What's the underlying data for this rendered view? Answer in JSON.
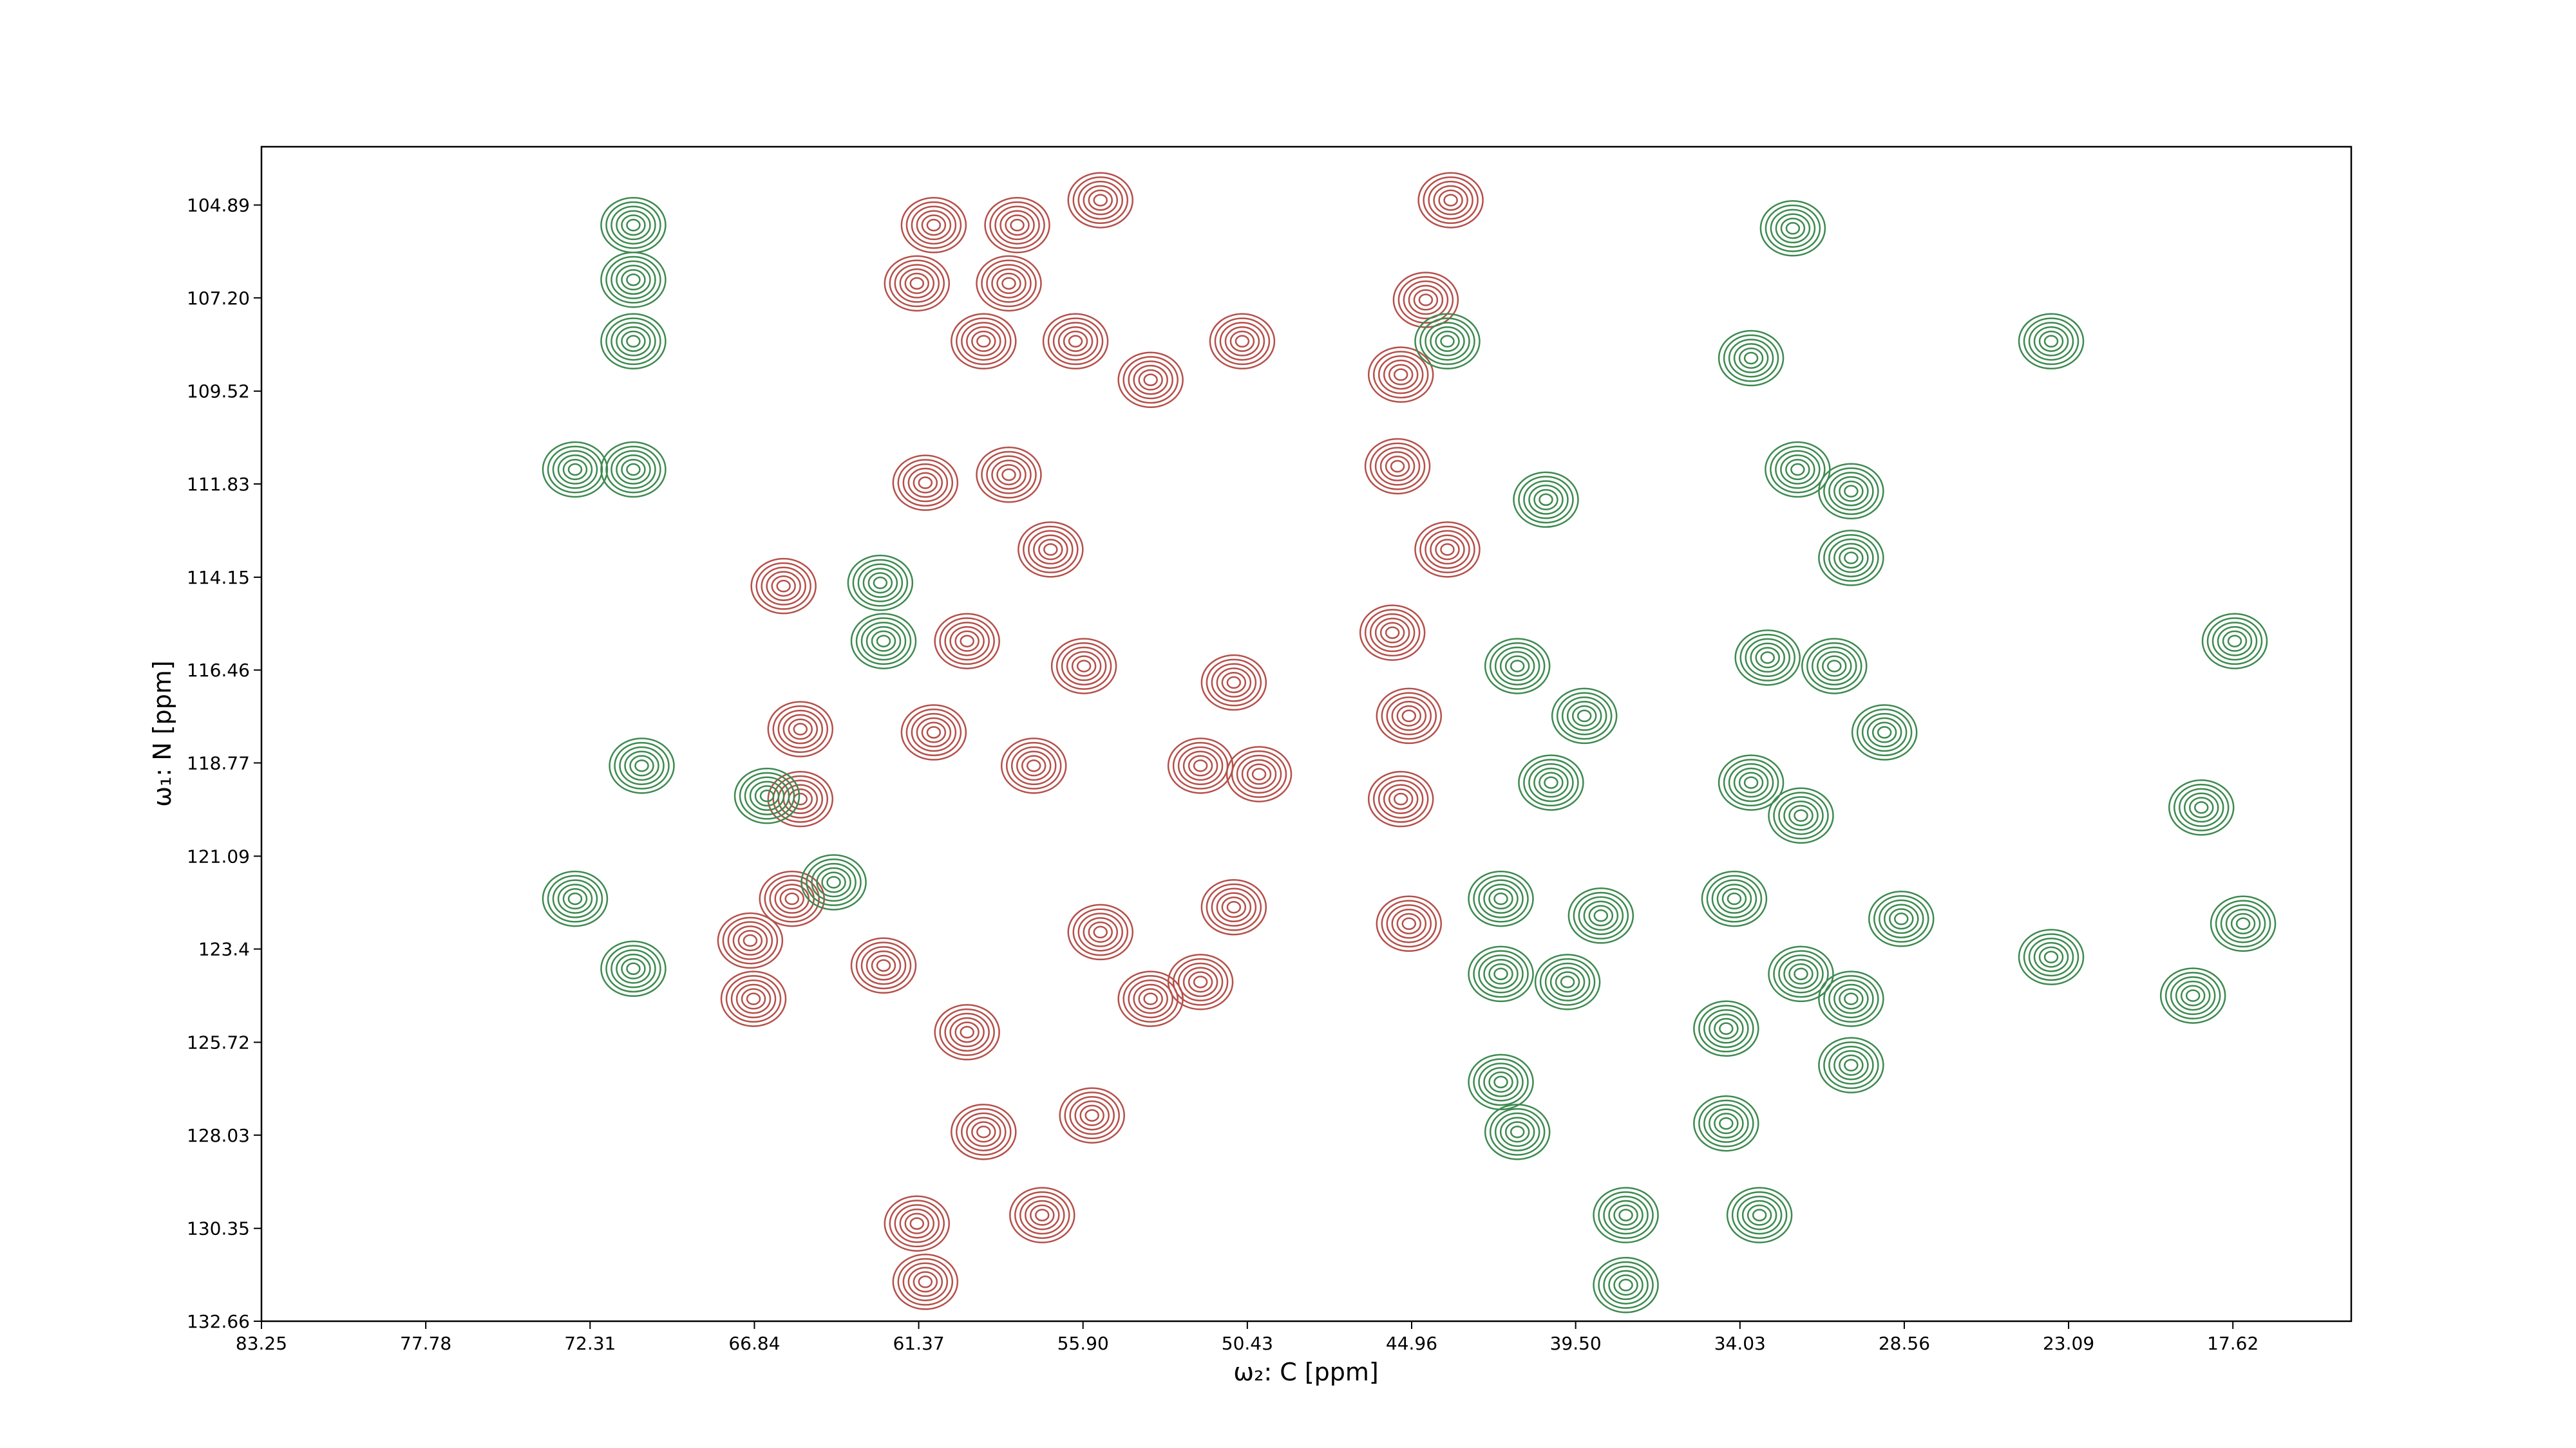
{
  "chart_data": {
    "type": "contour",
    "xlabel": "ω₂: C [ppm]",
    "ylabel": "ω₁: N [ppm]",
    "xlim": [
      83.25,
      13.68
    ],
    "ylim": [
      132.66,
      103.44
    ],
    "xticks": [
      83.25,
      77.78,
      72.31,
      66.84,
      61.37,
      {
        "value": 55.9,
        "label": "55.90"
      },
      50.43,
      44.96,
      {
        "value": 39.5,
        "label": "39.50"
      },
      34.03,
      28.56,
      23.09,
      17.62
    ],
    "yticks": [
      104.89,
      {
        "value": 107.2,
        "label": "107.20"
      },
      109.52,
      111.83,
      114.15,
      116.46,
      118.77,
      121.09,
      123.4,
      125.72,
      128.03,
      130.35,
      132.66
    ],
    "series": [
      {
        "color": "#b5504a",
        "x": [
          60.87,
          61.43,
          58.09,
          58.37,
          59.21,
          56.15,
          55.32,
          53.65,
          50.6,
          43.66,
          44.49,
          45.32,
          45.43,
          43.77,
          61.15,
          58.37,
          56.98,
          65.87,
          59.76,
          55.87,
          50.88,
          57.54,
          60.87,
          65.31,
          65.31,
          50.04,
          51.99,
          45.6,
          45.05,
          45.32,
          65.59,
          66.98,
          66.87,
          62.54,
          59.76,
          55.32,
          50.88,
          53.65,
          59.21,
          55.6,
          61.43,
          57.26,
          61.15,
          45.05,
          51.99
        ],
        "values": [
          105.39,
          106.84,
          105.39,
          106.84,
          108.28,
          108.28,
          104.77,
          109.24,
          108.28,
          104.77,
          107.25,
          109.11,
          111.39,
          113.46,
          111.8,
          111.6,
          113.46,
          114.37,
          115.74,
          116.36,
          116.77,
          118.84,
          118.01,
          117.93,
          119.67,
          119.05,
          118.84,
          115.53,
          117.6,
          119.67,
          122.15,
          123.19,
          124.64,
          123.81,
          125.47,
          122.98,
          122.36,
          124.64,
          127.95,
          127.54,
          130.23,
          130.02,
          131.68,
          122.77,
          124.22
        ]
      },
      {
        "color": "#3d8a4f",
        "x": [
          70.87,
          70.87,
          70.87,
          72.81,
          70.87,
          40.49,
          32.27,
          33.66,
          23.67,
          32.11,
          30.33,
          30.33,
          17.56,
          41.44,
          39.21,
          40.32,
          33.11,
          30.89,
          29.22,
          33.66,
          32.0,
          70.59,
          66.42,
          64.2,
          72.81,
          70.87,
          41.99,
          38.66,
          41.99,
          39.77,
          41.99,
          41.44,
          34.22,
          32.0,
          30.33,
          30.33,
          34.49,
          34.49,
          33.38,
          37.83,
          37.83,
          28.66,
          23.67,
          18.95,
          18.67,
          17.28,
          62.65,
          62.54,
          43.77
        ],
        "values": [
          105.39,
          106.75,
          108.28,
          111.47,
          111.47,
          112.22,
          105.47,
          108.7,
          108.28,
          111.47,
          112.01,
          113.67,
          115.74,
          116.36,
          117.6,
          119.26,
          116.15,
          116.36,
          118.01,
          119.26,
          120.08,
          118.84,
          119.59,
          121.74,
          122.15,
          123.89,
          122.15,
          122.57,
          124.02,
          124.22,
          126.71,
          127.95,
          122.15,
          124.02,
          124.64,
          126.29,
          125.38,
          127.74,
          130.02,
          130.02,
          131.76,
          122.65,
          123.6,
          124.56,
          119.88,
          122.77,
          114.29,
          115.74,
          108.28
        ]
      }
    ]
  }
}
